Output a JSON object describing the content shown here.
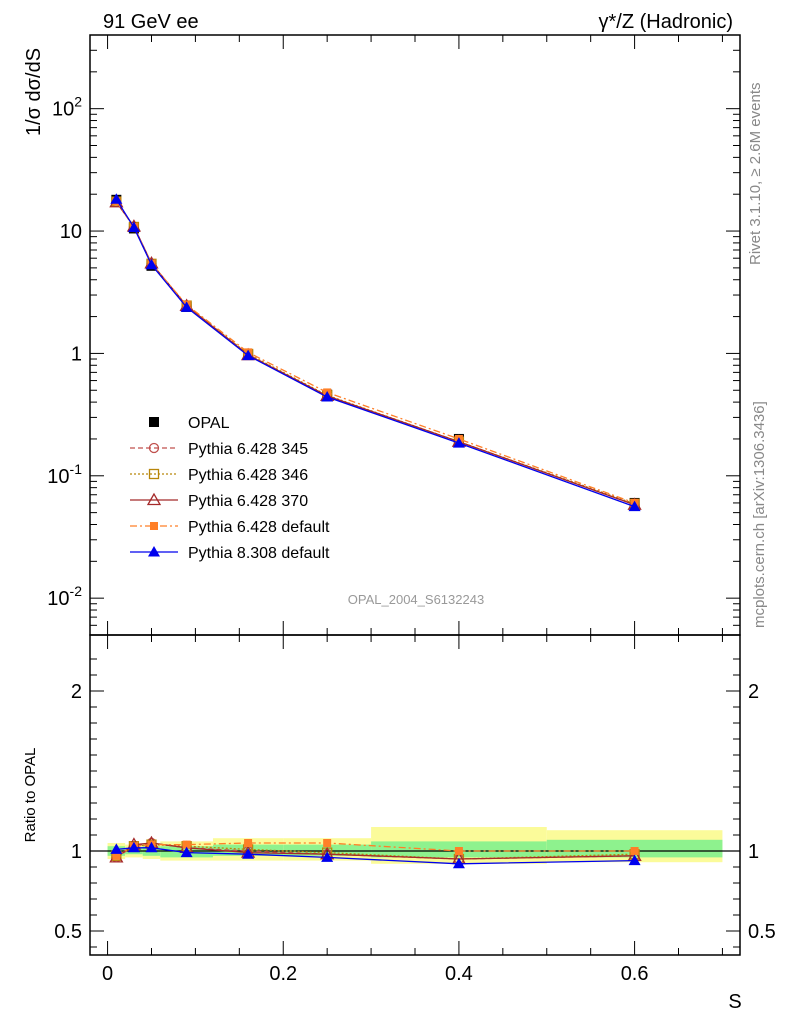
{
  "header": {
    "left_title": "91 GeV ee",
    "right_title": "γ*/Z (Hadronic)"
  },
  "side_text": {
    "rivet": "Rivet 3.1.10, ≥ 2.6M events",
    "source": "mcplots.cern.ch [arXiv:1306.3436]"
  },
  "watermark": "OPAL_2004_S6132243",
  "chart_data": [
    {
      "type": "line",
      "panel": "main",
      "ylabel": "1/σ dσ/dS",
      "yscale": "log",
      "ylim": [
        0.005,
        400
      ],
      "xlim": [
        -0.02,
        0.72
      ],
      "y_tick_labels": [
        "10^-2",
        "10^-1",
        "1",
        "10",
        "10^2"
      ],
      "legend_position": "lower-left",
      "x": [
        0.01,
        0.03,
        0.05,
        0.09,
        0.16,
        0.25,
        0.4,
        0.6
      ],
      "series": [
        {
          "name": "OPAL",
          "color": "#000000",
          "marker": "square",
          "line": "none",
          "values": [
            18.0,
            10.5,
            5.2,
            2.4,
            0.98,
            0.46,
            0.2,
            0.06
          ]
        },
        {
          "name": "Pythia 6.428 345",
          "color": "#c0504d",
          "marker": "circle-open",
          "line": "dashed",
          "values": [
            17.3,
            10.8,
            5.4,
            2.45,
            0.98,
            0.45,
            0.19,
            0.058
          ]
        },
        {
          "name": "Pythia 6.428 346",
          "color": "#b8860b",
          "marker": "square-open",
          "line": "dotted",
          "values": [
            17.4,
            10.8,
            5.4,
            2.46,
            0.99,
            0.455,
            0.19,
            0.059
          ]
        },
        {
          "name": "Pythia 6.428 370",
          "color": "#a52a2a",
          "marker": "triangle-open",
          "line": "solid",
          "values": [
            17.2,
            10.9,
            5.45,
            2.45,
            0.97,
            0.45,
            0.19,
            0.058
          ]
        },
        {
          "name": "Pythia 6.428 default",
          "color": "#ff7f27",
          "marker": "square-filled",
          "line": "dashdot",
          "values": [
            17.5,
            10.8,
            5.4,
            2.5,
            1.02,
            0.48,
            0.2,
            0.06
          ]
        },
        {
          "name": "Pythia 8.308 default",
          "color": "#0000ee",
          "marker": "triangle-filled",
          "line": "solid",
          "values": [
            18.2,
            10.7,
            5.3,
            2.38,
            0.96,
            0.44,
            0.185,
            0.056
          ]
        }
      ]
    },
    {
      "type": "line",
      "panel": "ratio",
      "xlabel": "S",
      "ylabel": "Ratio to OPAL",
      "ylim": [
        0.35,
        2.35
      ],
      "x_tick_labels": [
        "0",
        "0.2",
        "0.4",
        "0.6"
      ],
      "y_tick_labels": [
        "0.5",
        "1",
        "2"
      ],
      "x": [
        0.01,
        0.03,
        0.05,
        0.09,
        0.16,
        0.25,
        0.4,
        0.6
      ],
      "bands": {
        "edges": [
          0.0,
          0.02,
          0.04,
          0.06,
          0.12,
          0.2,
          0.3,
          0.5,
          0.7
        ],
        "inner": [
          [
            0.97,
            1.03
          ],
          [
            0.98,
            1.02
          ],
          [
            0.97,
            1.03
          ],
          [
            0.96,
            1.03
          ],
          [
            0.97,
            1.04
          ],
          [
            0.97,
            1.04
          ],
          [
            0.96,
            1.06
          ],
          [
            0.96,
            1.07
          ]
        ],
        "outer": [
          [
            0.95,
            1.05
          ],
          [
            0.96,
            1.04
          ],
          [
            0.95,
            1.05
          ],
          [
            0.94,
            1.06
          ],
          [
            0.94,
            1.08
          ],
          [
            0.94,
            1.08
          ],
          [
            0.92,
            1.15
          ],
          [
            0.93,
            1.13
          ]
        ],
        "inner_color": "#8ef28e",
        "outer_color": "#fbfb9a"
      },
      "series": [
        {
          "name": "Pythia 6.428 345",
          "color": "#c0504d",
          "marker": "circle-open",
          "line": "dashed",
          "values": [
            0.96,
            1.03,
            1.05,
            1.02,
            1.0,
            0.98,
            0.95,
            0.97
          ]
        },
        {
          "name": "Pythia 6.428 346",
          "color": "#b8860b",
          "marker": "square-open",
          "line": "dotted",
          "values": [
            0.97,
            1.03,
            1.04,
            1.03,
            1.01,
            0.99,
            0.95,
            0.98
          ]
        },
        {
          "name": "Pythia 6.428 370",
          "color": "#a52a2a",
          "marker": "triangle-open",
          "line": "solid",
          "values": [
            0.96,
            1.04,
            1.05,
            1.02,
            0.99,
            0.98,
            0.95,
            0.97
          ]
        },
        {
          "name": "Pythia 6.428 default",
          "color": "#ff7f27",
          "marker": "square-filled",
          "line": "dashdot",
          "values": [
            0.97,
            1.03,
            1.04,
            1.04,
            1.05,
            1.05,
            1.0,
            1.0
          ]
        },
        {
          "name": "Pythia 8.308 default",
          "color": "#0000ee",
          "marker": "triangle-filled",
          "line": "solid",
          "values": [
            1.01,
            1.02,
            1.02,
            0.99,
            0.98,
            0.96,
            0.92,
            0.94
          ]
        }
      ]
    }
  ]
}
